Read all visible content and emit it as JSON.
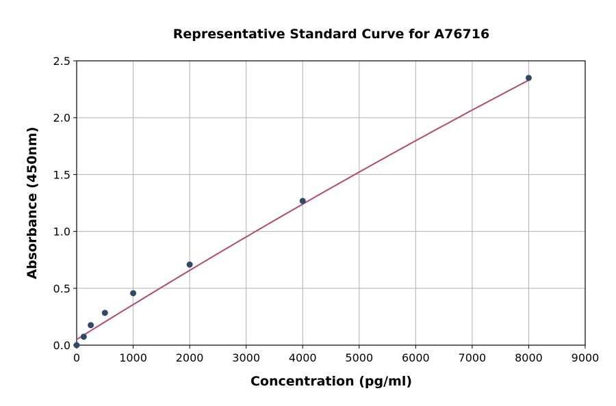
{
  "chart_data": {
    "type": "scatter",
    "title": "Representative Standard Curve for A76716",
    "xlabel": "Concentration (pg/ml)",
    "ylabel": "Absorbance (450nm)",
    "xlim": [
      0,
      9000
    ],
    "ylim": [
      0,
      2.5
    ],
    "xticks": [
      0,
      1000,
      2000,
      3000,
      4000,
      5000,
      6000,
      7000,
      8000,
      9000
    ],
    "yticks": [
      0.0,
      0.5,
      1.0,
      1.5,
      2.0,
      2.5
    ],
    "grid": true,
    "points": {
      "x": [
        0,
        125,
        250,
        500,
        1000,
        2000,
        4000,
        8000
      ],
      "y": [
        0.0,
        0.074,
        0.176,
        0.284,
        0.457,
        0.709,
        1.268,
        2.35
      ]
    },
    "fit": {
      "x_range": [
        0,
        8000
      ],
      "coefficients_quadratic": [
        0.05,
        0.00031,
        -3.125e-09
      ]
    },
    "colors": {
      "points": "#2e4a6b",
      "fit": "#b5476e",
      "grid": "#b0b0b0"
    }
  }
}
